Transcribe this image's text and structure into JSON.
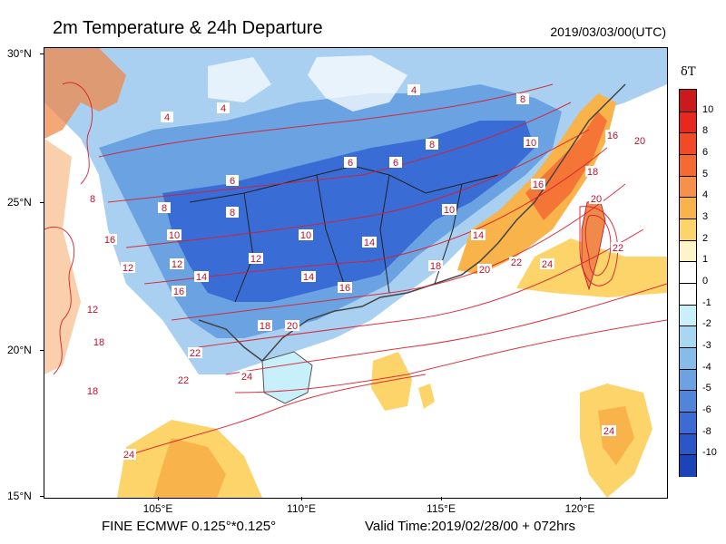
{
  "title": "2m Temperature & 24h Departure",
  "valid_time": "2019/03/03/00(UTC)",
  "footer": {
    "model": "FINE ECMWF 0.125°*0.125°",
    "valid": "Valid Time:2019/02/28/00 + 072hrs"
  },
  "axes": {
    "y_labels": [
      "30°N",
      "25°N",
      "20°N",
      "15°N"
    ],
    "x_labels": [
      "105°E",
      "110°E",
      "115°E",
      "120°E"
    ]
  },
  "colorbar": {
    "title": "δT",
    "labels": [
      "10",
      "8",
      "6",
      "5",
      "4",
      "3",
      "2",
      "1",
      "0",
      "-1",
      "-2",
      "-3",
      "-4",
      "-5",
      "-6",
      "-8",
      "-10"
    ],
    "colors": [
      "#cc1a1a",
      "#e6281f",
      "#f24a26",
      "#f56a33",
      "#f7904a",
      "#f8b34a",
      "#fcd46a",
      "#fff4c8",
      "#ffffff",
      "#ffffff",
      "#c8f0fa",
      "#a6d8f2",
      "#84bdea",
      "#6aa2e2",
      "#4f86da",
      "#3a6cd6",
      "#2a57c8",
      "#1a45b8"
    ]
  },
  "contour_labels": [
    "4",
    "4",
    "6",
    "8",
    "8",
    "10",
    "10",
    "12",
    "14",
    "16",
    "18",
    "20",
    "22",
    "24",
    "6",
    "8",
    "10",
    "12",
    "14",
    "16",
    "18",
    "20",
    "22",
    "24",
    "14",
    "16",
    "20",
    "22",
    "24",
    "16",
    "18",
    "20",
    "4",
    "6",
    "8",
    "10",
    "12",
    "18",
    "24",
    "22",
    "12",
    "16",
    "18",
    "14",
    "8"
  ]
}
